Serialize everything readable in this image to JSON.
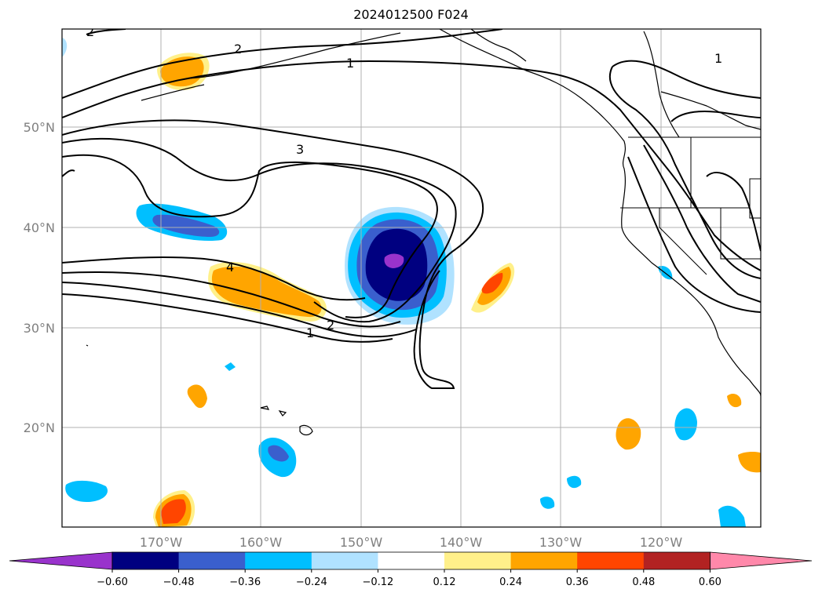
{
  "title": "2024012500 F024",
  "map": {
    "lat_labels": [
      "50°N",
      "40°N",
      "30°N",
      "20°N"
    ],
    "lon_labels": [
      "170°W",
      "160°W",
      "150°W",
      "140°W",
      "130°W",
      "120°W"
    ],
    "contour_labels": [
      "2",
      "1",
      "3",
      "4",
      "2",
      "1",
      "1",
      "2"
    ]
  },
  "colorbar": {
    "colors": [
      "#9933cc",
      "#000080",
      "#3a5fcd",
      "#00bfff",
      "#b0e2ff",
      "#ffffff",
      "#fff08a",
      "#ffa500",
      "#ff4500",
      "#b22222",
      "#ff88aa"
    ],
    "ticks": [
      "−0.60",
      "−0.48",
      "−0.36",
      "−0.24",
      "−0.12",
      "0.12",
      "0.24",
      "0.36",
      "0.48",
      "0.60"
    ]
  }
}
